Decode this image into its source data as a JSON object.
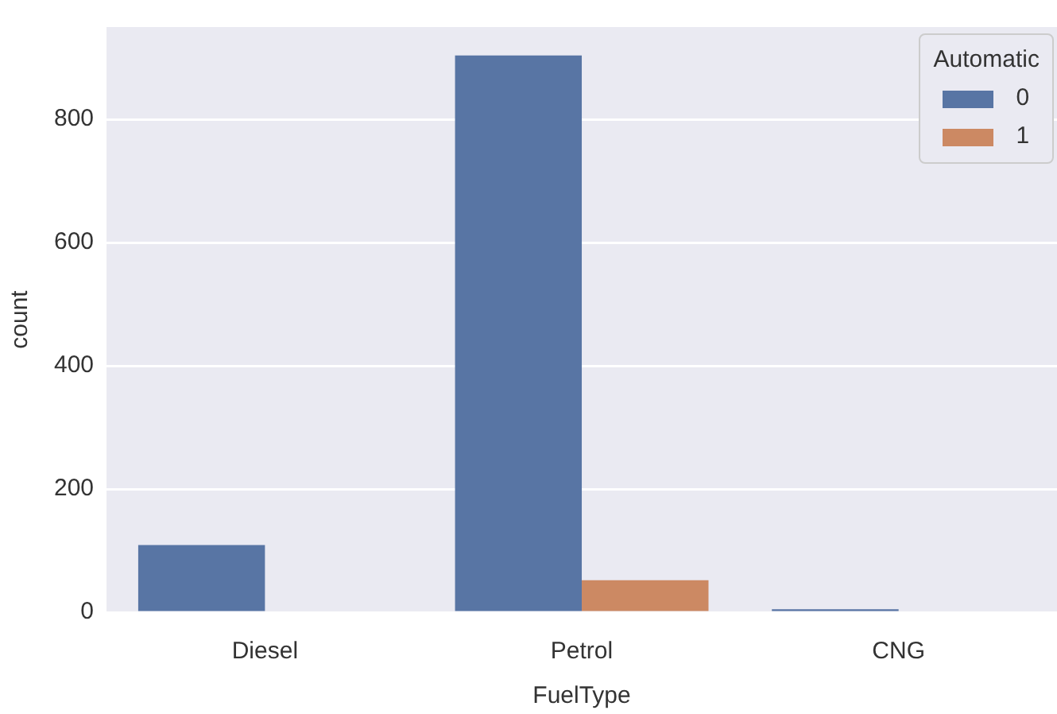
{
  "chart_data": {
    "type": "bar",
    "xlabel": "FuelType",
    "ylabel": "count",
    "legend_title": "Automatic",
    "categories": [
      "Diesel",
      "Petrol",
      "CNG"
    ],
    "series": [
      {
        "name": "0",
        "color": "#5875a4",
        "values": [
          109,
          904,
          5
        ]
      },
      {
        "name": "1",
        "color": "#cc8963",
        "values": [
          0,
          52,
          0
        ]
      }
    ],
    "ylim": [
      0,
      950
    ],
    "yticks": [
      0,
      200,
      400,
      600,
      800
    ],
    "grid": "y",
    "legend": "top right"
  }
}
